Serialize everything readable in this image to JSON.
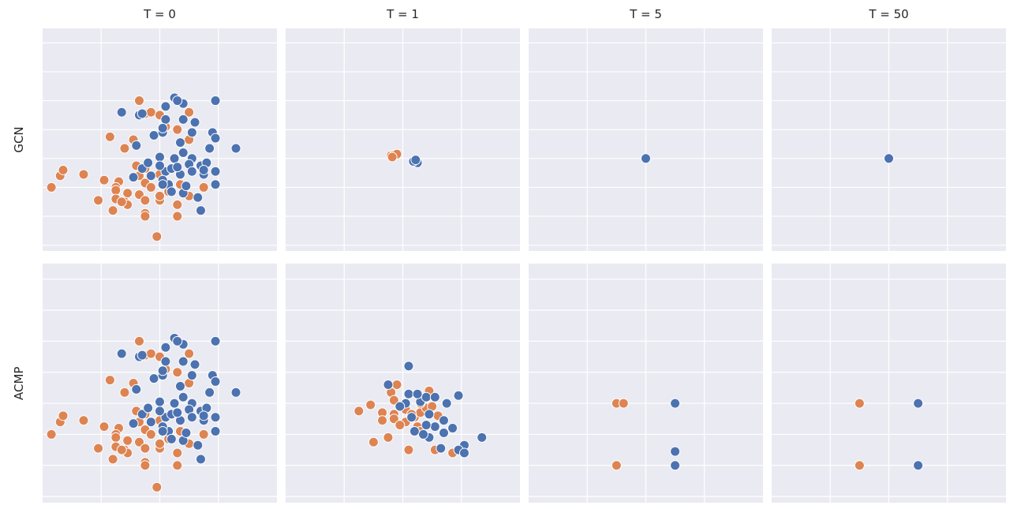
{
  "colors": {
    "class_a": "#4c72b0",
    "class_b": "#dd8452",
    "panel_bg": "#eaeaf2",
    "grid": "#ffffff"
  },
  "columns": [
    "T = 0",
    "T = 1",
    "T = 5",
    "T = 50"
  ],
  "rows": [
    "GCN",
    "ACMP"
  ],
  "chart_data": {
    "type": "scatter",
    "xlim": [
      -2,
      2
    ],
    "ylim": [
      -3.2,
      4.5
    ],
    "grid": true,
    "tick_labels_shown": false,
    "base_points": {
      "class_a": [
        [
          0.25,
          2.1
        ],
        [
          0.4,
          1.9
        ],
        [
          0.3,
          2.0
        ],
        [
          0.1,
          1.8
        ],
        [
          -0.65,
          1.6
        ],
        [
          -0.35,
          1.5
        ],
        [
          -0.3,
          1.55
        ],
        [
          0.95,
          2.0
        ],
        [
          0.1,
          1.35
        ],
        [
          0.4,
          1.35
        ],
        [
          0.6,
          1.25
        ],
        [
          -0.1,
          0.8
        ],
        [
          0.05,
          0.9
        ],
        [
          0.35,
          0.55
        ],
        [
          0.55,
          0.9
        ],
        [
          0.9,
          0.9
        ],
        [
          0.95,
          0.7
        ],
        [
          0.05,
          1.05
        ],
        [
          -0.4,
          0.45
        ],
        [
          0.85,
          0.35
        ],
        [
          0.4,
          0.2
        ],
        [
          0.55,
          0.0
        ],
        [
          0.25,
          0.0
        ],
        [
          1.3,
          0.35
        ],
        [
          0.0,
          0.05
        ],
        [
          -0.3,
          -0.35
        ],
        [
          -0.2,
          -0.15
        ],
        [
          0.1,
          -0.45
        ],
        [
          0.35,
          -0.55
        ],
        [
          0.5,
          -0.2
        ],
        [
          0.7,
          -0.25
        ],
        [
          0.8,
          -0.15
        ],
        [
          0.95,
          -0.45
        ],
        [
          0.75,
          -0.55
        ],
        [
          0.95,
          -0.9
        ],
        [
          -0.15,
          -0.6
        ],
        [
          0.15,
          -0.9
        ],
        [
          0.05,
          -0.75
        ],
        [
          0.2,
          -1.15
        ],
        [
          0.4,
          -1.2
        ],
        [
          0.65,
          -1.35
        ],
        [
          0.7,
          -1.8
        ],
        [
          0.0,
          -0.25
        ],
        [
          0.2,
          -0.35
        ],
        [
          0.3,
          -0.3
        ],
        [
          0.55,
          -0.45
        ],
        [
          0.75,
          -0.4
        ],
        [
          -0.45,
          -0.65
        ],
        [
          0.05,
          -0.9
        ],
        [
          0.45,
          -0.95
        ]
      ],
      "class_b": [
        [
          -0.35,
          2.0
        ],
        [
          -0.25,
          1.55
        ],
        [
          -0.15,
          1.6
        ],
        [
          0.0,
          1.5
        ],
        [
          0.5,
          1.6
        ],
        [
          -0.85,
          0.75
        ],
        [
          -0.45,
          0.65
        ],
        [
          0.5,
          0.65
        ],
        [
          0.3,
          1.0
        ],
        [
          0.1,
          1.1
        ],
        [
          -0.6,
          0.35
        ],
        [
          -1.7,
          -0.6
        ],
        [
          -1.3,
          -0.55
        ],
        [
          -0.95,
          -0.75
        ],
        [
          -0.7,
          -0.8
        ],
        [
          -0.35,
          -0.6
        ],
        [
          -0.25,
          -0.35
        ],
        [
          0.0,
          -0.55
        ],
        [
          0.15,
          -0.9
        ],
        [
          0.35,
          -0.9
        ],
        [
          -0.25,
          -0.85
        ],
        [
          -0.75,
          -1.0
        ],
        [
          -0.15,
          -1.0
        ],
        [
          -0.75,
          -1.1
        ],
        [
          -0.55,
          -1.2
        ],
        [
          -0.35,
          -1.25
        ],
        [
          -0.25,
          -1.45
        ],
        [
          0.0,
          -1.45
        ],
        [
          -0.75,
          -1.4
        ],
        [
          -0.6,
          -1.5
        ],
        [
          -0.55,
          -1.6
        ],
        [
          -0.8,
          -1.8
        ],
        [
          -0.25,
          -1.9
        ],
        [
          -1.05,
          -1.45
        ],
        [
          0.3,
          -1.6
        ],
        [
          0.5,
          -1.3
        ],
        [
          0.75,
          -1.0
        ],
        [
          -0.25,
          -2.0
        ],
        [
          -0.05,
          -2.7
        ],
        [
          -0.4,
          -0.25
        ],
        [
          -1.65,
          -0.4
        ],
        [
          -1.85,
          -1.0
        ],
        [
          -0.65,
          -1.5
        ],
        [
          0.0,
          -1.3
        ],
        [
          0.15,
          -1.15
        ],
        [
          0.3,
          -2.0
        ]
      ]
    },
    "panels": [
      {
        "row": "GCN",
        "col": "T = 0",
        "uses_base_points": true,
        "class_a": [],
        "class_b": []
      },
      {
        "row": "GCN",
        "col": "T = 1",
        "uses_base_points": false,
        "class_a": [
          [
            0.25,
            -0.15
          ],
          [
            0.18,
            -0.1
          ],
          [
            0.22,
            -0.05
          ]
        ],
        "class_b": [
          [
            -0.2,
            0.1
          ],
          [
            -0.15,
            0.12
          ],
          [
            -0.1,
            0.15
          ],
          [
            -0.18,
            0.05
          ]
        ]
      },
      {
        "row": "GCN",
        "col": "T = 5",
        "uses_base_points": false,
        "class_a": [
          [
            0.0,
            0.0
          ]
        ],
        "class_b": []
      },
      {
        "row": "GCN",
        "col": "T = 50",
        "uses_base_points": false,
        "class_a": [
          [
            0.0,
            0.0
          ]
        ],
        "class_b": []
      },
      {
        "row": "ACMP",
        "col": "T = 0",
        "uses_base_points": true,
        "class_a": [],
        "class_b": []
      },
      {
        "row": "ACMP",
        "col": "T = 1",
        "uses_base_points": false,
        "class_a": [
          [
            0.1,
            1.2
          ],
          [
            -0.25,
            0.6
          ],
          [
            0.05,
            0.0
          ],
          [
            0.3,
            0.05
          ],
          [
            0.4,
            0.2
          ],
          [
            0.75,
            0.0
          ],
          [
            0.95,
            0.25
          ],
          [
            0.55,
            0.2
          ],
          [
            0.7,
            -0.55
          ],
          [
            0.85,
            -0.8
          ],
          [
            0.55,
            -0.75
          ],
          [
            0.7,
            -0.95
          ],
          [
            0.45,
            -1.1
          ],
          [
            0.35,
            -1.0
          ],
          [
            0.2,
            -0.9
          ],
          [
            1.35,
            -1.1
          ],
          [
            1.05,
            -1.35
          ],
          [
            0.95,
            -1.5
          ],
          [
            1.05,
            -1.6
          ],
          [
            0.65,
            -1.45
          ],
          [
            0.4,
            -0.7
          ],
          [
            0.15,
            -0.45
          ],
          [
            -0.05,
            -0.1
          ],
          [
            0.45,
            -0.35
          ],
          [
            0.1,
            0.3
          ],
          [
            0.25,
            0.3
          ]
        ],
        "class_b": [
          [
            -0.1,
            0.6
          ],
          [
            -0.2,
            0.35
          ],
          [
            0.45,
            0.4
          ],
          [
            -0.55,
            -0.05
          ],
          [
            -0.35,
            -0.3
          ],
          [
            -0.15,
            -0.35
          ],
          [
            0.05,
            -0.2
          ],
          [
            0.2,
            -0.45
          ],
          [
            0.3,
            -0.3
          ],
          [
            0.4,
            -0.15
          ],
          [
            -0.75,
            -0.25
          ],
          [
            -0.35,
            -0.55
          ],
          [
            -0.15,
            -0.5
          ],
          [
            0.05,
            -0.6
          ],
          [
            0.15,
            -0.35
          ],
          [
            0.25,
            -0.75
          ],
          [
            -0.05,
            -0.7
          ],
          [
            0.3,
            -0.9
          ],
          [
            -0.5,
            -1.25
          ],
          [
            -0.25,
            -1.1
          ],
          [
            0.1,
            -1.5
          ],
          [
            0.55,
            -1.5
          ],
          [
            0.85,
            -1.6
          ],
          [
            0.3,
            0.0
          ],
          [
            0.5,
            -0.1
          ],
          [
            0.6,
            -0.4
          ],
          [
            -0.15,
            0.1
          ]
        ]
      },
      {
        "row": "ACMP",
        "col": "T = 5",
        "uses_base_points": false,
        "class_a": [
          [
            0.5,
            0.0
          ],
          [
            0.5,
            -1.55
          ],
          [
            0.5,
            -2.0
          ]
        ],
        "class_b": [
          [
            -0.5,
            0.0
          ],
          [
            -0.38,
            0.0
          ],
          [
            -0.5,
            -2.0
          ]
        ]
      },
      {
        "row": "ACMP",
        "col": "T = 50",
        "uses_base_points": false,
        "class_a": [
          [
            0.5,
            0.0
          ],
          [
            0.5,
            -2.0
          ]
        ],
        "class_b": [
          [
            -0.5,
            0.0
          ],
          [
            -0.5,
            -2.0
          ]
        ]
      }
    ]
  }
}
